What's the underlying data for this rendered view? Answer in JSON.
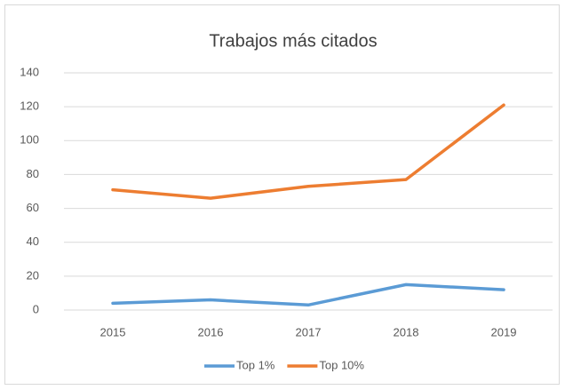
{
  "chart_data": {
    "type": "line",
    "title": "Trabajos más citados",
    "categories": [
      "2015",
      "2016",
      "2017",
      "2018",
      "2019"
    ],
    "series": [
      {
        "name": "Top 1%",
        "color": "#5b9bd5",
        "values": [
          4,
          6,
          3,
          15,
          12
        ]
      },
      {
        "name": "Top 10%",
        "color": "#ed7d31",
        "values": [
          71,
          66,
          73,
          77,
          121
        ]
      }
    ],
    "ylim": [
      0,
      140
    ],
    "yticks": [
      0,
      20,
      40,
      60,
      80,
      100,
      120,
      140
    ],
    "grid": true,
    "legend": "bottom"
  }
}
